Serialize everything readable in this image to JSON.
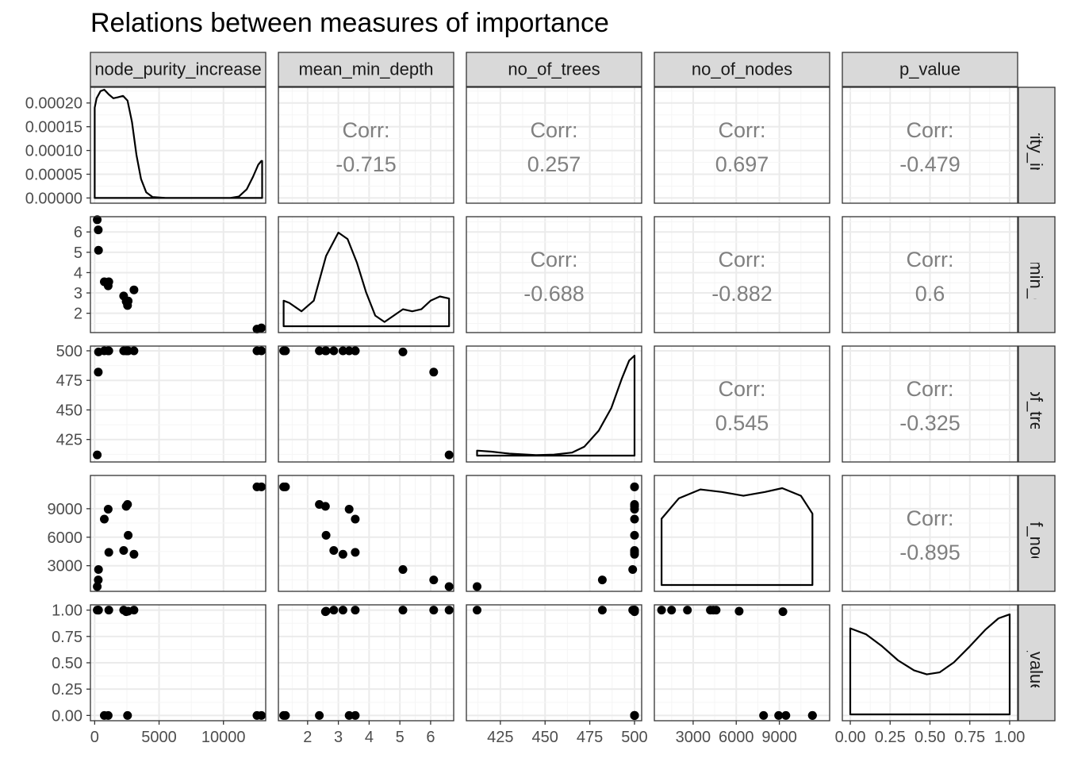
{
  "chart_data": {
    "type": "scatter",
    "title": "Relations between measures of importance",
    "variables": [
      "node_purity_increase",
      "mean_min_depth",
      "no_of_trees",
      "no_of_nodes",
      "p_value"
    ],
    "corr_label": "Corr:",
    "correlations": [
      {
        "row": "node_purity_increase",
        "col": "mean_min_depth",
        "value": "-0.715"
      },
      {
        "row": "node_purity_increase",
        "col": "no_of_trees",
        "value": "0.257"
      },
      {
        "row": "node_purity_increase",
        "col": "no_of_nodes",
        "value": "0.697"
      },
      {
        "row": "node_purity_increase",
        "col": "p_value",
        "value": "-0.479"
      },
      {
        "row": "mean_min_depth",
        "col": "no_of_trees",
        "value": "-0.688"
      },
      {
        "row": "mean_min_depth",
        "col": "no_of_nodes",
        "value": "-0.882"
      },
      {
        "row": "mean_min_depth",
        "col": "p_value",
        "value": "0.6"
      },
      {
        "row": "no_of_trees",
        "col": "no_of_nodes",
        "value": "0.545"
      },
      {
        "row": "no_of_trees",
        "col": "p_value",
        "value": "-0.325"
      },
      {
        "row": "no_of_nodes",
        "col": "p_value",
        "value": "-0.895"
      }
    ],
    "axes": {
      "node_purity_increase": {
        "range": [
          -330,
          13280
        ],
        "ticks": [
          0,
          5000,
          10000
        ],
        "tick_labels": [
          "0",
          "5000",
          "10000"
        ]
      },
      "mean_min_depth": {
        "range": [
          1.05,
          6.75
        ],
        "ticks": [
          2,
          3,
          4,
          5,
          6
        ],
        "tick_labels": [
          "2",
          "3",
          "4",
          "5",
          "6"
        ]
      },
      "no_of_trees": {
        "range": [
          406,
          504
        ],
        "ticks": [
          425,
          450,
          475,
          500
        ],
        "tick_labels": [
          "425",
          "450",
          "475",
          "500"
        ]
      },
      "no_of_nodes": {
        "range": [
          300,
          12500
        ],
        "ticks": [
          3000,
          6000,
          9000
        ],
        "tick_labels": [
          "3000",
          "6000",
          "9000"
        ]
      },
      "p_value": {
        "range": [
          -0.05,
          1.05
        ],
        "ticks": [
          0,
          0.25,
          0.5,
          0.75,
          1
        ],
        "tick_labels": [
          "0.00",
          "0.25",
          "0.50",
          "0.75",
          "1.00"
        ]
      }
    },
    "density_axis": {
      "range": [
        -1.1e-05,
        0.000233
      ],
      "ticks": [
        0,
        5e-05,
        0.0001,
        0.00015,
        0.0002
      ],
      "tick_labels": [
        "0.00000",
        "0.00005",
        "0.00010",
        "0.00015",
        "0.00020"
      ]
    },
    "points": [
      {
        "node_purity_increase": 12950,
        "mean_min_depth": 1.28,
        "no_of_trees": 500,
        "no_of_nodes": 11300,
        "p_value": 0.0
      },
      {
        "node_purity_increase": 12600,
        "mean_min_depth": 1.22,
        "no_of_trees": 500,
        "no_of_nodes": 11300,
        "p_value": 0.0
      },
      {
        "node_purity_increase": 2550,
        "mean_min_depth": 2.38,
        "no_of_trees": 500,
        "no_of_nodes": 9450,
        "p_value": 0.0
      },
      {
        "node_purity_increase": 2450,
        "mean_min_depth": 2.58,
        "no_of_trees": 500,
        "no_of_nodes": 9250,
        "p_value": 0.985
      },
      {
        "node_purity_increase": 1050,
        "mean_min_depth": 3.35,
        "no_of_trees": 500,
        "no_of_nodes": 8950,
        "p_value": 0.0
      },
      {
        "node_purity_increase": 750,
        "mean_min_depth": 3.55,
        "no_of_trees": 500,
        "no_of_nodes": 7900,
        "p_value": 0.0
      },
      {
        "node_purity_increase": 2600,
        "mean_min_depth": 2.6,
        "no_of_trees": 500,
        "no_of_nodes": 6200,
        "p_value": 0.99
      },
      {
        "node_purity_increase": 2250,
        "mean_min_depth": 2.85,
        "no_of_trees": 500,
        "no_of_nodes": 4600,
        "p_value": 1.0
      },
      {
        "node_purity_increase": 1100,
        "mean_min_depth": 3.55,
        "no_of_trees": 500,
        "no_of_nodes": 4400,
        "p_value": 1.0
      },
      {
        "node_purity_increase": 3050,
        "mean_min_depth": 3.15,
        "no_of_trees": 500,
        "no_of_nodes": 4200,
        "p_value": 1.0
      },
      {
        "node_purity_increase": 300,
        "mean_min_depth": 5.1,
        "no_of_trees": 499,
        "no_of_nodes": 2600,
        "p_value": 1.0
      },
      {
        "node_purity_increase": 280,
        "mean_min_depth": 6.1,
        "no_of_trees": 482,
        "no_of_nodes": 1500,
        "p_value": 1.0
      },
      {
        "node_purity_increase": 200,
        "mean_min_depth": 6.6,
        "no_of_trees": 412,
        "no_of_nodes": 800,
        "p_value": 1.0
      }
    ],
    "densities": {
      "node_purity_increase": [
        [
          0,
          0.00019
        ],
        [
          150,
          0.00021
        ],
        [
          450,
          0.000225
        ],
        [
          750,
          0.000228
        ],
        [
          1100,
          0.000218
        ],
        [
          1450,
          0.00021
        ],
        [
          1800,
          0.000212
        ],
        [
          2200,
          0.000215
        ],
        [
          2550,
          0.000205
        ],
        [
          2900,
          0.00016
        ],
        [
          3250,
          9e-05
        ],
        [
          3600,
          4e-05
        ],
        [
          4000,
          1.2e-05
        ],
        [
          4500,
          2e-06
        ],
        [
          5500,
          0.0
        ],
        [
          10500,
          0.0
        ],
        [
          11200,
          3e-06
        ],
        [
          11800,
          1.8e-05
        ],
        [
          12300,
          4.5e-05
        ],
        [
          12700,
          7e-05
        ],
        [
          12950,
          7.8e-05
        ],
        [
          13000,
          7.8e-05
        ]
      ],
      "mean_min_depth": [
        [
          1.22,
          0.12
        ],
        [
          1.4,
          0.11
        ],
        [
          1.8,
          0.07
        ],
        [
          2.2,
          0.12
        ],
        [
          2.6,
          0.33
        ],
        [
          3.0,
          0.44
        ],
        [
          3.3,
          0.41
        ],
        [
          3.6,
          0.3
        ],
        [
          3.9,
          0.16
        ],
        [
          4.2,
          0.05
        ],
        [
          4.5,
          0.02
        ],
        [
          4.8,
          0.05
        ],
        [
          5.1,
          0.08
        ],
        [
          5.4,
          0.07
        ],
        [
          5.7,
          0.08
        ],
        [
          6.0,
          0.12
        ],
        [
          6.3,
          0.14
        ],
        [
          6.6,
          0.13
        ]
      ],
      "no_of_trees": [
        [
          412,
          0.01
        ],
        [
          420,
          0.008
        ],
        [
          430,
          0.004
        ],
        [
          445,
          0.001
        ],
        [
          455,
          0.002
        ],
        [
          465,
          0.006
        ],
        [
          472,
          0.018
        ],
        [
          480,
          0.05
        ],
        [
          487,
          0.095
        ],
        [
          493,
          0.155
        ],
        [
          497,
          0.19
        ],
        [
          500,
          0.2
        ]
      ],
      "no_of_nodes": [
        [
          800,
          5.2e-05
        ],
        [
          2000,
          6.8e-05
        ],
        [
          3500,
          7.5e-05
        ],
        [
          5000,
          7.3e-05
        ],
        [
          6500,
          7e-05
        ],
        [
          8000,
          7.3e-05
        ],
        [
          9200,
          7.6e-05
        ],
        [
          10500,
          7e-05
        ],
        [
          11300,
          5.6e-05
        ]
      ],
      "p_value": [
        [
          0.0,
          0.86
        ],
        [
          0.1,
          0.8
        ],
        [
          0.2,
          0.68
        ],
        [
          0.3,
          0.54
        ],
        [
          0.4,
          0.44
        ],
        [
          0.48,
          0.4
        ],
        [
          0.56,
          0.42
        ],
        [
          0.65,
          0.52
        ],
        [
          0.75,
          0.68
        ],
        [
          0.85,
          0.85
        ],
        [
          0.93,
          0.96
        ],
        [
          1.0,
          1.0
        ]
      ]
    },
    "density_ymax": {
      "mean_min_depth": 0.47,
      "no_of_trees": 0.2,
      "no_of_nodes": 7.85e-05,
      "p_value": 1.0
    },
    "grid": true,
    "colors": {
      "panel_border": "#333333",
      "strip_fill": "#d9d9d9",
      "grid_major": "#ebebeb",
      "grid_minor": "#f5f5f5",
      "marks": "#000000",
      "corr_text": "#808080",
      "tick_text": "#4d4d4d"
    }
  }
}
